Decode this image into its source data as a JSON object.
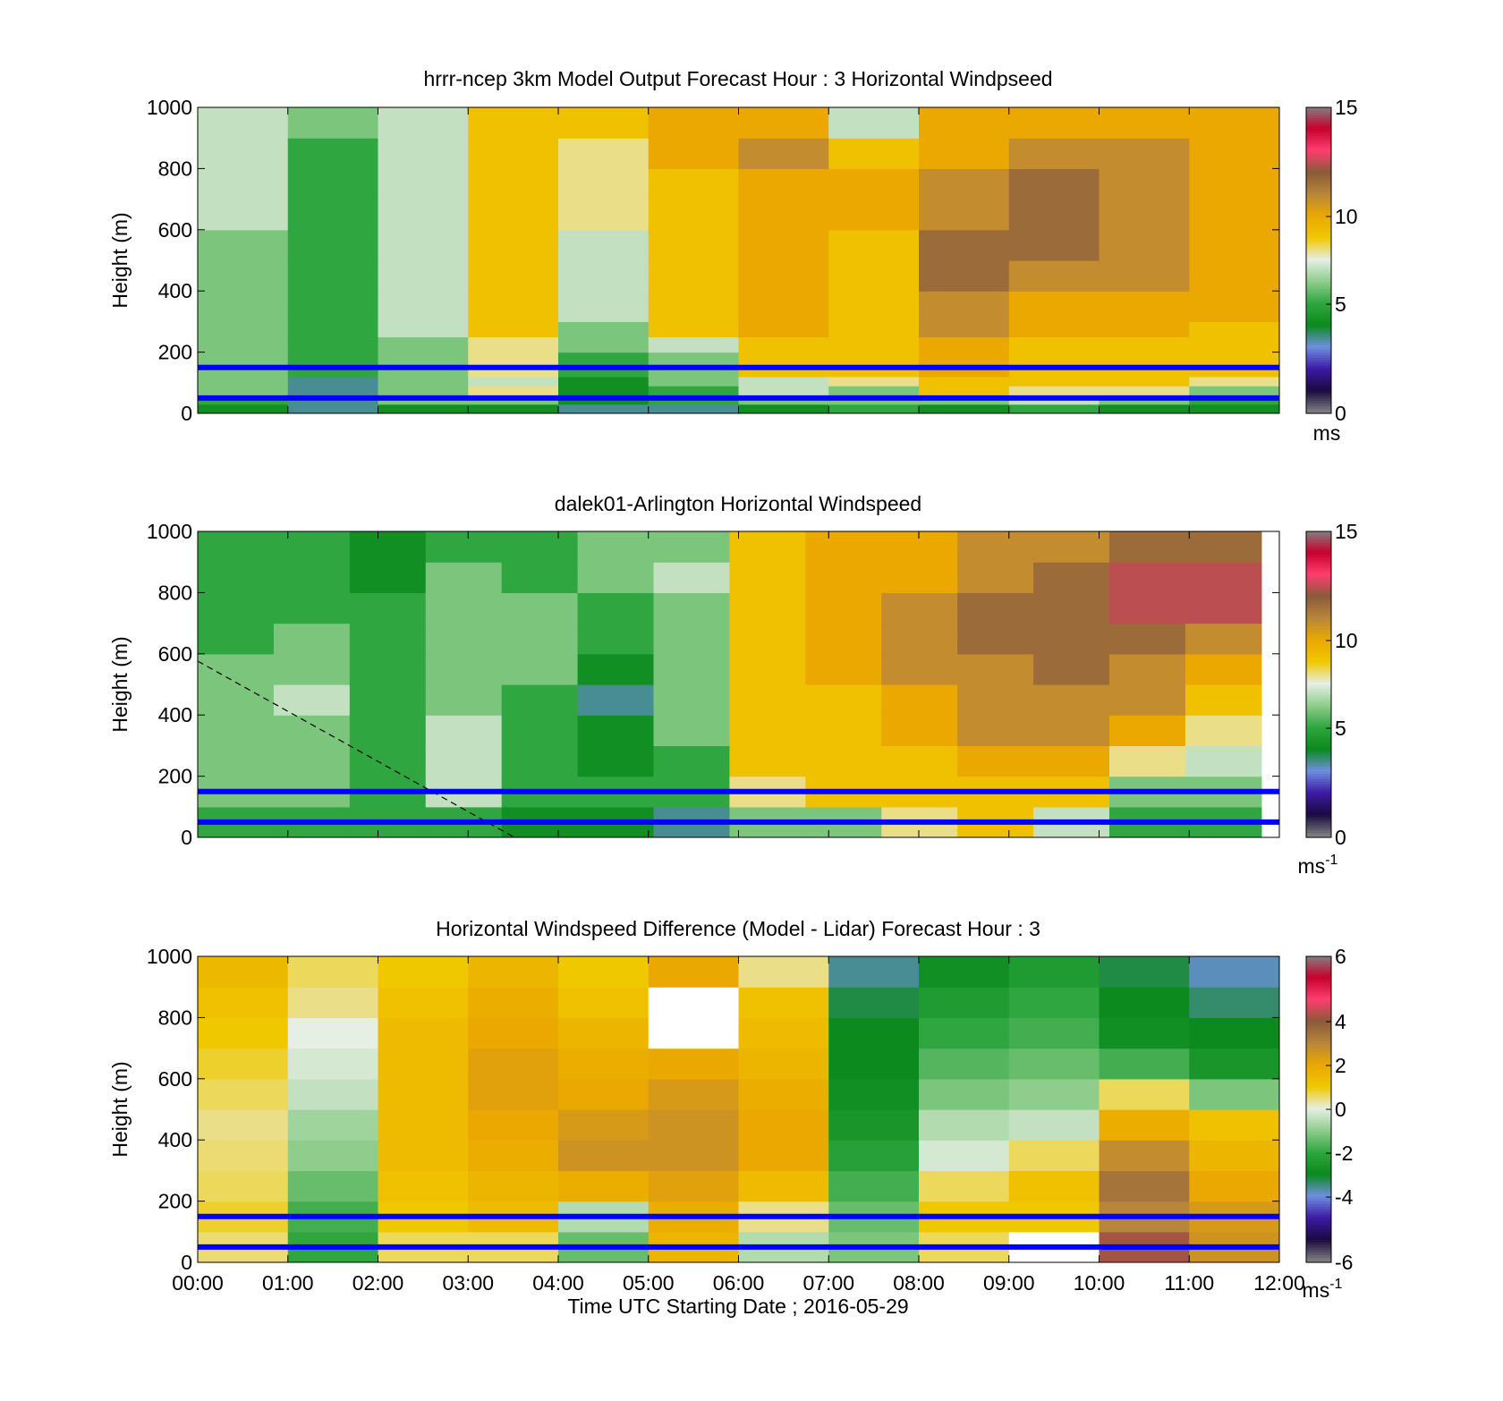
{
  "xaxis": {
    "ticks": [
      "00:00",
      "01:00",
      "02:00",
      "03:00",
      "04:00",
      "05:00",
      "06:00",
      "07:00",
      "08:00",
      "09:00",
      "10:00",
      "11:00",
      "12:00"
    ],
    "label": "Time UTC  Starting Date ; 2016-05-29"
  },
  "yaxis": {
    "label": "Height (m)",
    "ticks": [
      "0",
      "200",
      "400",
      "600",
      "800",
      "1000"
    ]
  },
  "colormap": {
    "name": "blue-green-white-yellow-brown-pink",
    "stops": [
      "#828282",
      "#1a0a40",
      "#3c1aa6",
      "#6f8fe0",
      "#0b8a1c",
      "#2fa640",
      "#8fcd8c",
      "#e6efe4",
      "#f0c800",
      "#eaa800",
      "#b8863a",
      "#8a5a3a",
      "#ff3d6e",
      "#c8002c",
      "#828282"
    ]
  },
  "overlay_lines": {
    "color": "#0000ff",
    "heights_m": [
      150,
      50
    ]
  },
  "chart_data": [
    {
      "type": "heatmap",
      "title": "hrrr-ncep 3km Model Output   Forecast Hour : 3 Horizontal Windpseed",
      "colorbar": {
        "ticks": [
          "0",
          "5",
          "10",
          "15"
        ],
        "range": [
          0,
          15
        ],
        "unit": "ms"
      },
      "x_range_hours": [
        0,
        12
      ],
      "ylim": [
        0,
        1000
      ],
      "height_levels_m": [
        0,
        30,
        60,
        90,
        120,
        150,
        200,
        250,
        300,
        350,
        400,
        500,
        600,
        700,
        800,
        900,
        1000
      ],
      "columns": [
        [
          4,
          5,
          6,
          6,
          6,
          6,
          6,
          6,
          6,
          6,
          6,
          6,
          7,
          7,
          7,
          7
        ],
        [
          3,
          3,
          3,
          3,
          5,
          5,
          5,
          5,
          5,
          5,
          5,
          5,
          5,
          5,
          5,
          6
        ],
        [
          4,
          6,
          6,
          6,
          6,
          6,
          6,
          7,
          7,
          7,
          7,
          7,
          7,
          7,
          7,
          7
        ],
        [
          4,
          6,
          8,
          7,
          8,
          8,
          8,
          9,
          9,
          9,
          9,
          9,
          9,
          9,
          9,
          9
        ],
        [
          3,
          4,
          4,
          4,
          5,
          5,
          6,
          6,
          7,
          7,
          7,
          7,
          8,
          8,
          8,
          9
        ],
        [
          3,
          5,
          5,
          6,
          6,
          6,
          7,
          9,
          9,
          9,
          9,
          9,
          9,
          9,
          10,
          10
        ],
        [
          4,
          6,
          7,
          7,
          9,
          9,
          9,
          10,
          10,
          10,
          10,
          10,
          10,
          10,
          11,
          10
        ],
        [
          5,
          6,
          6,
          8,
          9,
          9,
          9,
          9,
          9,
          9,
          9,
          9,
          10,
          10,
          9,
          7
        ],
        [
          4,
          6,
          9,
          9,
          10,
          10,
          10,
          11,
          11,
          11,
          12,
          12,
          11,
          11,
          10,
          10
        ],
        [
          5,
          7,
          8,
          9,
          9,
          9,
          9,
          10,
          10,
          10,
          11,
          12,
          12,
          12,
          11,
          10
        ],
        [
          4,
          6,
          8,
          9,
          9,
          9,
          9,
          10,
          10,
          10,
          11,
          11,
          11,
          11,
          11,
          10
        ],
        [
          4,
          5,
          6,
          8,
          9,
          9,
          9,
          9,
          10,
          10,
          10,
          10,
          10,
          10,
          10,
          10
        ]
      ]
    },
    {
      "type": "heatmap",
      "title": "dalek01-Arlington  Horizontal Windspeed",
      "colorbar": {
        "ticks": [
          "0",
          "5",
          "10",
          "15"
        ],
        "range": [
          0,
          15
        ],
        "unit": "ms",
        "unit_exp": "-1"
      },
      "x_range_hours": [
        0,
        11.8
      ],
      "ylim": [
        0,
        1000
      ],
      "height_levels_m": [
        0,
        100,
        200,
        300,
        400,
        500,
        600,
        700,
        800,
        900,
        1000
      ],
      "columns": [
        [
          5,
          6,
          6,
          6,
          6,
          6,
          5,
          5,
          5,
          5
        ],
        [
          5,
          6,
          6,
          6,
          7,
          6,
          6,
          5,
          5,
          5
        ],
        [
          5,
          5,
          5,
          5,
          5,
          5,
          5,
          5,
          4,
          4
        ],
        [
          5,
          7,
          7,
          7,
          6,
          6,
          6,
          6,
          6,
          5
        ],
        [
          4,
          5,
          5,
          5,
          5,
          6,
          6,
          6,
          5,
          5
        ],
        [
          4,
          5,
          4,
          4,
          3,
          4,
          5,
          5,
          6,
          6
        ],
        [
          3,
          5,
          5,
          6,
          6,
          6,
          6,
          6,
          7,
          6
        ],
        [
          6,
          8,
          9,
          9,
          9,
          9,
          9,
          9,
          9,
          9
        ],
        [
          6,
          9,
          9,
          9,
          9,
          10,
          10,
          10,
          10,
          10
        ],
        [
          8,
          9,
          9,
          10,
          10,
          11,
          11,
          11,
          10,
          10
        ],
        [
          9,
          9,
          10,
          11,
          11,
          11,
          12,
          12,
          11,
          11
        ],
        [
          7,
          9,
          10,
          11,
          11,
          12,
          12,
          12,
          12,
          11
        ],
        [
          5,
          6,
          8,
          10,
          11,
          11,
          12,
          13,
          13,
          12
        ],
        [
          5,
          6,
          7,
          8,
          9,
          10,
          11,
          13,
          13,
          12
        ]
      ],
      "annotation": "dashed diagonal line"
    },
    {
      "type": "heatmap",
      "title": "Horizontal Windspeed Difference (Model - Lidar) Forecast Hour : 3",
      "colorbar": {
        "ticks": [
          "-6",
          "-4",
          "-2",
          "0",
          "2",
          "4",
          "6"
        ],
        "range": [
          -6,
          6
        ],
        "unit": "ms",
        "unit_exp": "-1"
      },
      "x_range_hours": [
        0,
        12
      ],
      "ylim": [
        0,
        1000
      ],
      "height_levels_m": [
        0,
        100,
        200,
        300,
        400,
        500,
        600,
        700,
        800,
        900,
        1000
      ],
      "columns": [
        [
          0.5,
          0.8,
          0.6,
          0.5,
          0.4,
          0.6,
          0.8,
          1.0,
          1.2,
          1.5
        ],
        [
          -2.0,
          -1.8,
          -1.4,
          -1.0,
          -0.8,
          -0.4,
          -0.2,
          0.0,
          0.4,
          0.6
        ],
        [
          0.6,
          1.0,
          1.2,
          1.4,
          1.4,
          1.4,
          1.4,
          1.4,
          1.2,
          1.0
        ],
        [
          0.6,
          1.4,
          1.6,
          1.8,
          2.0,
          2.2,
          2.2,
          2.0,
          1.8,
          1.6
        ],
        [
          -1.4,
          -0.6,
          1.8,
          2.6,
          2.4,
          2.0,
          1.8,
          1.6,
          1.2,
          1.0
        ],
        [
          1.6,
          1.8,
          2.2,
          2.6,
          2.6,
          2.4,
          2.0,
          null,
          null,
          2.0
        ],
        [
          -0.6,
          0.4,
          1.4,
          2.0,
          2.0,
          1.8,
          1.6,
          1.4,
          1.2,
          0.4
        ],
        [
          -1.2,
          -1.4,
          -1.8,
          -2.2,
          -2.6,
          -2.8,
          -3.0,
          -3.0,
          -3.2,
          -3.6
        ],
        [
          0.6,
          1.0,
          0.6,
          -0.2,
          -0.6,
          -1.2,
          -1.6,
          -2.0,
          -2.4,
          -2.8
        ],
        [
          null,
          1.0,
          1.2,
          0.6,
          -0.4,
          -1.0,
          -1.4,
          -1.8,
          -2.0,
          -2.4
        ],
        [
          4.2,
          3.0,
          3.4,
          2.8,
          1.8,
          0.6,
          -1.8,
          -2.8,
          -3.0,
          -3.2
        ],
        [
          2.6,
          2.4,
          2.0,
          1.6,
          1.2,
          -1.2,
          -2.6,
          -3.0,
          -3.4,
          -3.8
        ]
      ]
    }
  ]
}
